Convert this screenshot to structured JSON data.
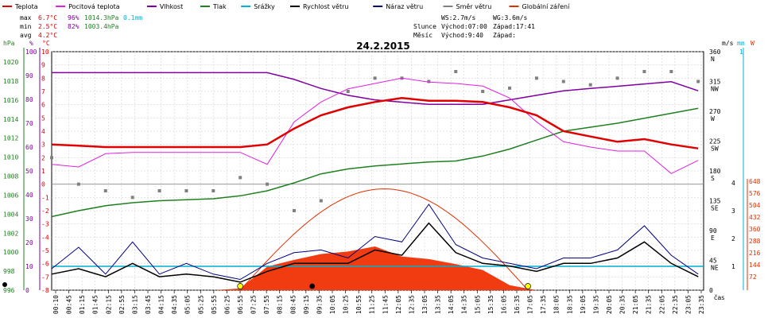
{
  "chart_data": {
    "type": "line",
    "title": "24.2.2015",
    "legend": [
      {
        "name": "Teplota",
        "color": "#e00000"
      },
      {
        "name": "Pocitová teplota",
        "color": "#e020e0"
      },
      {
        "name": "Vlhkost",
        "color": "#8000a0"
      },
      {
        "name": "Tlak",
        "color": "#208020"
      },
      {
        "name": "Srážky",
        "color": "#00b0d0"
      },
      {
        "name": "Rychlost větru",
        "color": "#000000"
      },
      {
        "name": "Náraz větru",
        "color": "#000080"
      },
      {
        "name": "Směr větru",
        "color": "#808080"
      },
      {
        "name": "Globální záření",
        "color": "#e03000"
      }
    ],
    "stats": {
      "max": {
        "label": "max",
        "temp": "6.7°C",
        "hum": "96%",
        "press": "1014.3hPa",
        "rain": "0.1mm"
      },
      "min": {
        "label": "min",
        "temp": "2.5°C",
        "hum": "82%",
        "press": "1003.4hPa"
      },
      "avg": {
        "label": "avg",
        "temp": "4.2°C"
      }
    },
    "info": {
      "ws": "WS:2.7m/s",
      "wg": "WG:3.6m/s",
      "sun_label": "Slunce",
      "sun_rise": "Východ:07:00",
      "sun_set": "Západ:17:41",
      "moon_label": "Měsíc",
      "moon_rise": "Východ:9:40",
      "moon_set": "Západ:"
    },
    "axes": {
      "hpa_unit": "hPa",
      "pct_unit": "%",
      "c_unit": "°C",
      "ms_unit": "m/s",
      "mm_unit": "mm",
      "w_unit": "W",
      "time_unit": "čas",
      "hpa_ticks": [
        "1020",
        "1018",
        "1016",
        "1014",
        "1012",
        "1010",
        "1008",
        "1006",
        "1004",
        "1002",
        "1000",
        "998",
        "996"
      ],
      "pct_ticks": [
        "100",
        "90",
        "80",
        "70",
        "60",
        "50",
        "40",
        "30",
        "20",
        "10",
        "0"
      ],
      "c_ticks": [
        "10",
        "9",
        "8",
        "7",
        "6",
        "5",
        "4",
        "3",
        "2",
        "1",
        "0",
        "-1",
        "-2",
        "-3",
        "-4",
        "-5",
        "-6",
        "-7",
        "-8"
      ],
      "dir_ticks": [
        "360 N",
        "315 NW",
        "270 W",
        "225 SW",
        "180 S",
        "135 SE",
        "90 E",
        "45 NE",
        "0"
      ],
      "ms_ticks": [
        "4",
        "3",
        "2",
        "1"
      ],
      "mm_ticks": [
        "1"
      ],
      "w_ticks": [
        "648",
        "576",
        "504",
        "432",
        "360",
        "288",
        "216",
        "144",
        "72"
      ],
      "x_ticks": [
        "00:10",
        "00:45",
        "01:15",
        "01:45",
        "02:15",
        "02:55",
        "03:15",
        "03:45",
        "04:15",
        "04:35",
        "05:05",
        "05:25",
        "05:55",
        "06:25",
        "06:55",
        "07:25",
        "07:55",
        "08:15",
        "08:45",
        "09:15",
        "09:35",
        "10:05",
        "10:25",
        "10:55",
        "11:25",
        "11:45",
        "12:05",
        "12:35",
        "13:05",
        "13:35",
        "14:05",
        "14:35",
        "15:05",
        "15:35",
        "16:05",
        "16:35",
        "17:05",
        "17:35",
        "18:05",
        "18:35",
        "19:05",
        "19:35",
        "20:05",
        "20:35",
        "21:05",
        "21:35",
        "22:05",
        "22:35",
        "23:05",
        "23:35"
      ]
    },
    "hours": [
      0,
      1,
      2,
      3,
      4,
      5,
      6,
      7,
      8,
      9,
      10,
      11,
      12,
      13,
      14,
      15,
      16,
      17,
      18,
      19,
      20,
      21,
      22,
      23,
      24
    ],
    "temperature": [
      3.0,
      2.9,
      2.8,
      2.8,
      2.8,
      2.8,
      2.8,
      2.8,
      3.0,
      4.2,
      5.2,
      5.8,
      6.2,
      6.5,
      6.3,
      6.3,
      6.2,
      5.8,
      5.2,
      4.0,
      3.6,
      3.2,
      3.4,
      3.0,
      2.7
    ],
    "feels_like": [
      1.5,
      1.3,
      2.3,
      2.4,
      2.4,
      2.4,
      2.4,
      2.4,
      1.5,
      4.7,
      6.2,
      7.2,
      7.6,
      8.0,
      7.7,
      7.6,
      7.4,
      6.5,
      4.7,
      3.2,
      2.8,
      2.5,
      2.5,
      0.8,
      1.8
    ],
    "humidity": [
      96,
      96,
      96,
      96,
      96,
      96,
      96,
      96,
      96,
      93,
      89,
      86,
      84,
      83,
      82,
      82,
      82,
      84,
      86,
      88,
      89,
      90,
      91,
      92,
      88
    ],
    "pressure": [
      1003.4,
      1004.0,
      1004.5,
      1004.8,
      1005.0,
      1005.1,
      1005.2,
      1005.5,
      1006.0,
      1006.8,
      1007.7,
      1008.2,
      1008.5,
      1008.7,
      1008.9,
      1009.0,
      1009.5,
      1010.2,
      1011.1,
      1012.0,
      1012.4,
      1012.8,
      1013.3,
      1013.8,
      1014.3
    ],
    "gust": [
      0.8,
      1.6,
      0.6,
      1.8,
      0.6,
      1.0,
      0.6,
      0.4,
      1.0,
      1.4,
      1.5,
      1.2,
      2.0,
      1.8,
      3.2,
      1.7,
      1.2,
      1.0,
      0.8,
      1.2,
      1.2,
      1.5,
      2.4,
      1.3,
      0.6
    ],
    "wind_speed": [
      0.6,
      0.8,
      0.5,
      1.0,
      0.5,
      0.6,
      0.5,
      0.3,
      0.7,
      1.0,
      1.0,
      1.0,
      1.5,
      1.3,
      2.5,
      1.4,
      1.0,
      0.9,
      0.7,
      1.0,
      1.0,
      1.2,
      1.8,
      1.0,
      0.5
    ],
    "wind_dir": [
      200,
      160,
      150,
      140,
      150,
      150,
      150,
      170,
      160,
      120,
      135,
      300,
      320,
      320,
      315,
      330,
      300,
      305,
      320,
      315,
      310,
      320,
      330,
      330,
      315
    ],
    "radiation": [
      0,
      0,
      0,
      0,
      0,
      0,
      0,
      10,
      140,
      180,
      215,
      230,
      260,
      200,
      185,
      155,
      120,
      30,
      0,
      0,
      0,
      0,
      0,
      0,
      0
    ],
    "rain": [
      0,
      0,
      0,
      0,
      0,
      0,
      0,
      0,
      0,
      0,
      0,
      0,
      0,
      0,
      0,
      0,
      0,
      0,
      0,
      0,
      0,
      0,
      0,
      0,
      0
    ],
    "solar_potential_peak": 648,
    "sunrise_hour": 7.0,
    "sunset_hour": 17.68,
    "moonrise_hour": 9.67
  }
}
